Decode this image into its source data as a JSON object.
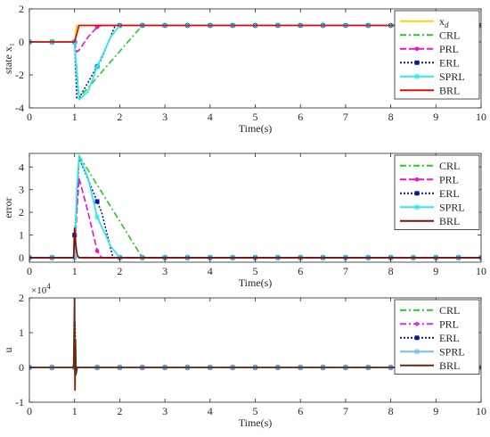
{
  "chart_data": [
    {
      "type": "line",
      "xlabel": "Time(s)",
      "ylabel": "state x₁",
      "xlim": [
        0,
        10
      ],
      "ylim": [
        -4,
        2
      ],
      "xticks": [
        0,
        1,
        2,
        3,
        4,
        5,
        6,
        7,
        8,
        9,
        10
      ],
      "yticks": [
        -4,
        -2,
        0,
        2
      ],
      "grid": false,
      "legend_position": "top-right",
      "series": [
        {
          "name": "x",
          "name_sub": "d",
          "color": "#ffd400",
          "style": "solid",
          "x": [
            0,
            1.0,
            1.05,
            10
          ],
          "y": [
            0,
            0,
            1,
            1
          ]
        },
        {
          "name": "CRL",
          "color": "#22cc22",
          "style": "dashdot",
          "marker": "none",
          "x": [
            0,
            1.0,
            1.1,
            2.5,
            10
          ],
          "y": [
            0,
            0,
            -3.4,
            1,
            1
          ]
        },
        {
          "name": "PRL",
          "color": "#ee11cc",
          "style": "dashed",
          "marker": "dot",
          "x": [
            0,
            1.0,
            1.05,
            1.1,
            1.3,
            1.5,
            1.6,
            10
          ],
          "y": [
            0,
            0,
            -0.6,
            -0.5,
            0.3,
            0.9,
            1,
            1
          ]
        },
        {
          "name": "ERL",
          "color": "#0a1a9e",
          "style": "dotted",
          "marker": "square",
          "x": [
            0,
            1.0,
            1.05,
            1.1,
            1.6,
            1.9,
            10
          ],
          "y": [
            0,
            0,
            -3.4,
            -3.4,
            -1,
            1,
            1
          ]
        },
        {
          "name": "SPRL",
          "color": "#33e6ee",
          "style": "solid",
          "marker": "star",
          "x": [
            0,
            1.0,
            1.05,
            1.1,
            1.3,
            1.5,
            1.8,
            2.0,
            10
          ],
          "y": [
            0,
            0,
            -2.0,
            -3.5,
            -3.0,
            -1.5,
            0.3,
            1,
            1
          ]
        },
        {
          "name": "BRL",
          "color": "#dd1111",
          "style": "solid",
          "marker": "none",
          "x": [
            0,
            1.0,
            1.1,
            10
          ],
          "y": [
            0,
            0,
            1,
            1
          ]
        }
      ]
    },
    {
      "type": "line",
      "xlabel": "Time(s)",
      "ylabel": "error",
      "xlim": [
        0,
        10
      ],
      "ylim": [
        -0.2,
        4.6
      ],
      "xticks": [
        0,
        1,
        2,
        3,
        4,
        5,
        6,
        7,
        8,
        9,
        10
      ],
      "yticks": [
        0,
        1,
        2,
        3,
        4
      ],
      "grid": false,
      "legend_position": "top-right",
      "series": [
        {
          "name": "CRL",
          "color": "#22cc22",
          "style": "dashdot",
          "marker": "none",
          "x": [
            0,
            1.0,
            1.1,
            2.5,
            10
          ],
          "y": [
            0,
            0,
            4.5,
            0,
            0
          ]
        },
        {
          "name": "PRL",
          "color": "#ee11cc",
          "style": "dashed",
          "marker": "dot",
          "x": [
            0,
            1.0,
            1.05,
            1.1,
            1.3,
            1.5,
            1.6,
            10
          ],
          "y": [
            0,
            0,
            2.0,
            3.5,
            2.0,
            0.3,
            0,
            0
          ]
        },
        {
          "name": "ERL",
          "color": "#0a1a9e",
          "style": "dotted",
          "marker": "square",
          "x": [
            0,
            0.98,
            1.0,
            1.05,
            1.1,
            1.6,
            1.85,
            10
          ],
          "y": [
            0,
            0,
            1.0,
            2.5,
            4.4,
            2.0,
            0,
            0
          ]
        },
        {
          "name": "SPRL",
          "color": "#33e6ee",
          "style": "solid",
          "marker": "star",
          "x": [
            0,
            1.0,
            1.05,
            1.1,
            1.3,
            1.5,
            1.8,
            2.0,
            10
          ],
          "y": [
            0,
            0,
            3.0,
            4.5,
            3.5,
            1.8,
            0.5,
            0,
            0
          ]
        },
        {
          "name": "BRL",
          "color": "#8b0a0a",
          "style": "solid",
          "marker": "none",
          "x": [
            0,
            0.98,
            1.0,
            1.03,
            1.06,
            1.1,
            10
          ],
          "y": [
            0,
            0,
            1.3,
            0.5,
            0.1,
            0,
            0
          ]
        }
      ]
    },
    {
      "type": "line",
      "xlabel": "Time(s)",
      "ylabel": "u",
      "exponent_label": "×10",
      "exponent_power": "4",
      "xlim": [
        0,
        10
      ],
      "ylim": [
        -1,
        2
      ],
      "xticks": [
        0,
        1,
        2,
        3,
        4,
        5,
        6,
        7,
        8,
        9,
        10
      ],
      "yticks": [
        -1,
        0,
        1,
        2
      ],
      "grid": false,
      "legend_position": "top-right",
      "series": [
        {
          "name": "CRL",
          "color": "#22cc22",
          "style": "dashdot",
          "marker": "none",
          "x": [
            0,
            10
          ],
          "y": [
            0,
            0
          ]
        },
        {
          "name": "PRL",
          "color": "#cc33ee",
          "style": "dashdot",
          "marker": "dot",
          "x": [
            0,
            1.0,
            1.01,
            1.03,
            10
          ],
          "y": [
            0,
            0,
            0.5,
            0,
            0
          ]
        },
        {
          "name": "ERL",
          "color": "#0a1a9e",
          "style": "dotted",
          "marker": "square",
          "x": [
            0,
            1.0,
            1.01,
            1.03,
            10
          ],
          "y": [
            0,
            0,
            1.3,
            0,
            0
          ]
        },
        {
          "name": "SPRL",
          "color": "#77bbee",
          "style": "solid",
          "marker": "star",
          "x": [
            0,
            1.0,
            1.01,
            1.03,
            10
          ],
          "y": [
            0,
            0,
            0.6,
            0,
            0
          ]
        },
        {
          "name": "BRL",
          "color": "#6b2a0a",
          "style": "solid",
          "marker": "none",
          "x": [
            0,
            0.98,
            1.0,
            1.01,
            1.02,
            1.03,
            1.06,
            10
          ],
          "y": [
            0,
            0,
            2.0,
            -0.65,
            0.8,
            -0.2,
            0,
            0
          ]
        }
      ]
    }
  ]
}
